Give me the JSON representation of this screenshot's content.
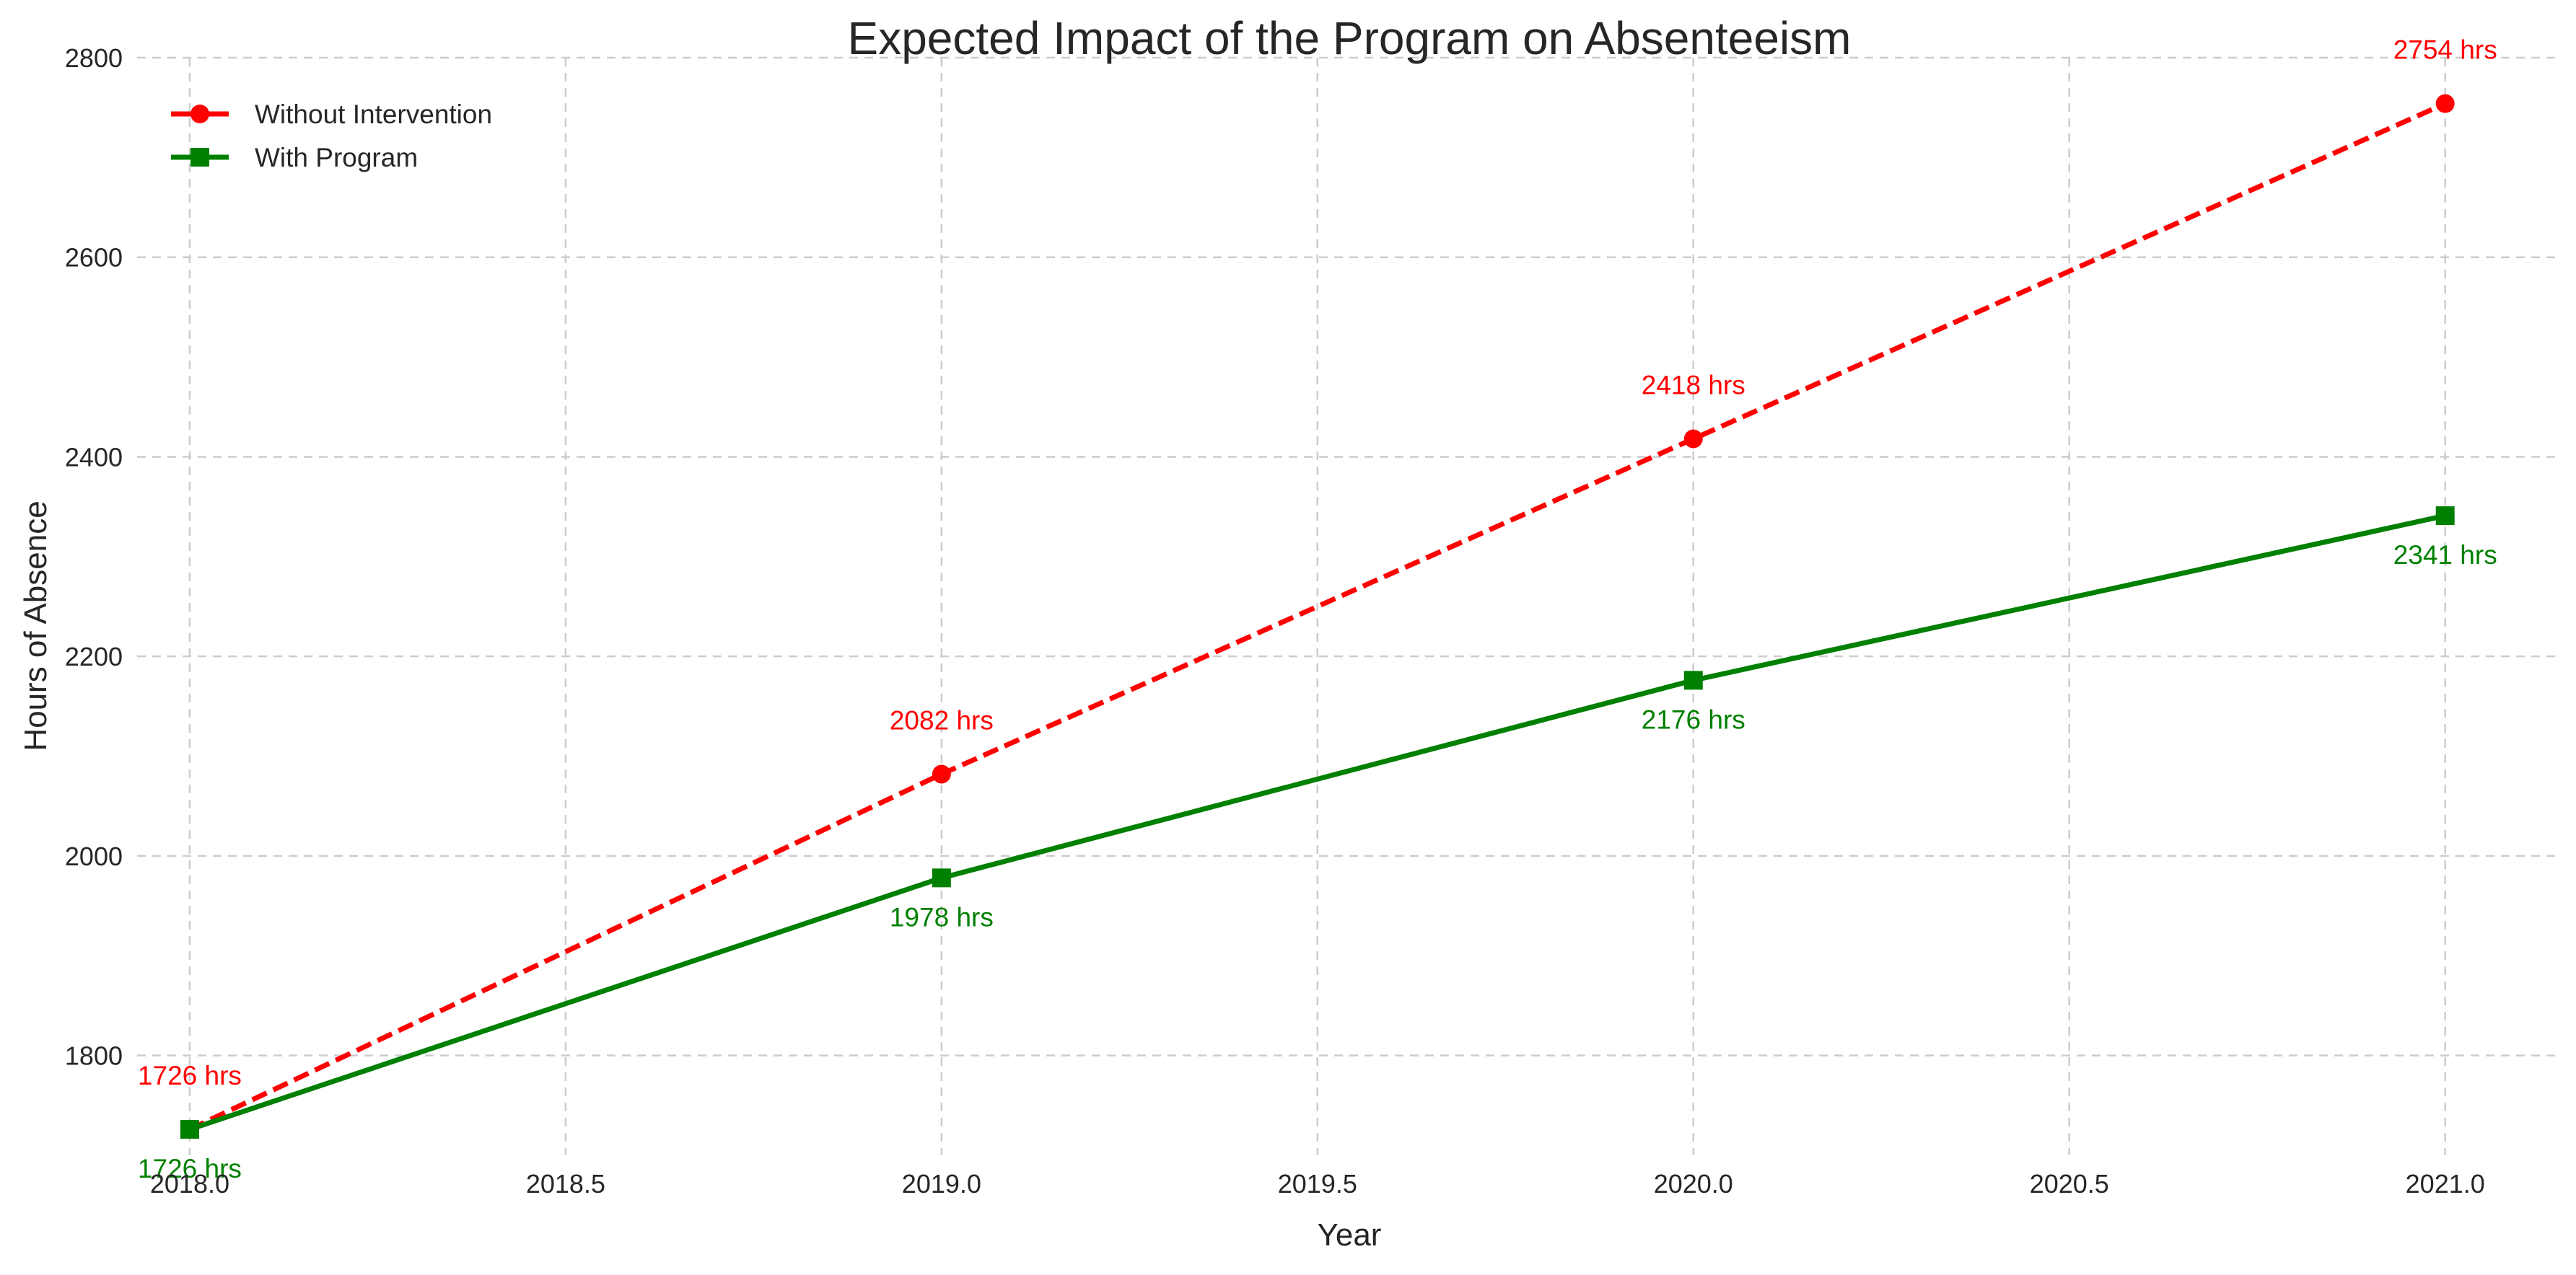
{
  "chart_data": {
    "type": "line",
    "title": "Expected Impact of the Program on Absenteeism",
    "xlabel": "Year",
    "ylabel": "Hours of Absence",
    "xlim": [
      2017.93,
      2021.15
    ],
    "ylim": [
      1700,
      2800
    ],
    "x_ticks": [
      2018.0,
      2018.5,
      2019.0,
      2019.5,
      2020.0,
      2020.5,
      2021.0
    ],
    "x_tick_labels": [
      "2018.0",
      "2018.5",
      "2019.0",
      "2019.5",
      "2020.0",
      "2020.5",
      "2021.0"
    ],
    "y_ticks": [
      1800,
      2000,
      2200,
      2400,
      2600,
      2800
    ],
    "y_tick_labels": [
      "1800",
      "2000",
      "2200",
      "2400",
      "2600",
      "2800"
    ],
    "grid": true,
    "legend_position": "top-left",
    "x": [
      2018,
      2019,
      2020,
      2021
    ],
    "series": [
      {
        "name": "Without Intervention",
        "values": [
          1726,
          2082,
          2418,
          2754
        ],
        "labels": [
          "1726 hrs",
          "2082 hrs",
          "2418 hrs",
          "2754 hrs"
        ],
        "color": "#ff0000",
        "line_style": "dashed",
        "marker": "circle",
        "label_position": "above"
      },
      {
        "name": "With Program",
        "values": [
          1726,
          1978,
          2176,
          2341
        ],
        "labels": [
          "1726 hrs",
          "1978 hrs",
          "2176 hrs",
          "2341 hrs"
        ],
        "color": "#008000",
        "line_style": "solid",
        "marker": "square",
        "label_position": "below"
      }
    ]
  }
}
